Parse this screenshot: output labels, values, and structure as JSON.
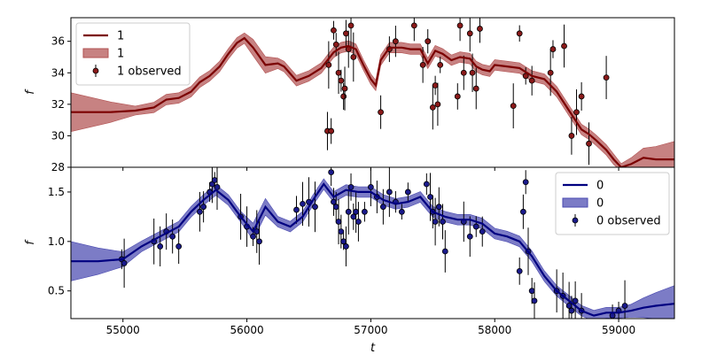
{
  "chart_data": [
    {
      "type": "line",
      "panel": "top",
      "xlabel": "",
      "ylabel": "f",
      "xlim": [
        54580,
        59450
      ],
      "ylim": [
        28,
        37.5
      ],
      "yticks": [
        28,
        30,
        32,
        34,
        36
      ],
      "xticks": [
        55000,
        56000,
        57000,
        58000,
        59000
      ],
      "grid": false,
      "legend_position": "top-left",
      "legend": [
        {
          "label": "1",
          "kind": "line"
        },
        {
          "label": "1",
          "kind": "band"
        },
        {
          "label": "1 observed",
          "kind": "errorbar"
        }
      ],
      "colors": {
        "line": "#7b0000",
        "band": "#b25252",
        "marker": "#8b1a1a"
      },
      "series": [
        {
          "kind": "model_mean",
          "x": [
            54580,
            54900,
            55100,
            55250,
            55350,
            55450,
            55550,
            55620,
            55700,
            55780,
            55850,
            55920,
            55980,
            56050,
            56150,
            56250,
            56300,
            56400,
            56500,
            56600,
            56660,
            56700,
            56760,
            56820,
            56880,
            56940,
            57000,
            57040,
            57080,
            57150,
            57250,
            57320,
            57400,
            57460,
            57520,
            57580,
            57650,
            57720,
            57800,
            57850,
            57900,
            57960,
            58000,
            58100,
            58200,
            58300,
            58400,
            58500,
            58600,
            58700,
            58760,
            58820,
            58900,
            58960,
            59020,
            59100,
            59200,
            59300,
            59450
          ],
          "y": [
            31.5,
            31.5,
            31.6,
            31.8,
            32.3,
            32.4,
            32.8,
            33.4,
            33.8,
            34.4,
            35.2,
            35.9,
            36.2,
            35.6,
            34.5,
            34.6,
            34.4,
            33.5,
            33.8,
            34.3,
            34.9,
            35.3,
            35.6,
            35.7,
            35.5,
            34.5,
            33.6,
            33.2,
            34.8,
            35.6,
            35.6,
            35.5,
            35.5,
            34.6,
            35.4,
            35.2,
            34.8,
            35.0,
            34.9,
            34.4,
            34.2,
            34.1,
            34.5,
            34.4,
            34.3,
            33.8,
            33.6,
            32.8,
            31.6,
            30.4,
            30.1,
            29.7,
            29.1,
            28.5,
            28.0,
            28.2,
            28.6,
            28.5,
            28.5
          ]
        },
        {
          "kind": "observed",
          "x": [
            56650,
            56660,
            56680,
            56700,
            56720,
            56740,
            56760,
            56780,
            56790,
            56800,
            56820,
            56840,
            56860,
            57080,
            57150,
            57200,
            57350,
            57420,
            57460,
            57500,
            57520,
            57540,
            57560,
            57700,
            57720,
            57750,
            57800,
            57820,
            57850,
            57880,
            58150,
            58200,
            58250,
            58300,
            58450,
            58470,
            58560,
            58620,
            58660,
            58700,
            58760,
            58900
          ],
          "y": [
            30.3,
            34.5,
            30.3,
            36.7,
            35.8,
            34.0,
            33.5,
            32.5,
            33.0,
            36.5,
            35.5,
            37.0,
            35.0,
            31.5,
            35.5,
            36.0,
            37.0,
            34.5,
            36.0,
            31.8,
            33.2,
            32.0,
            34.5,
            32.5,
            37.0,
            34.0,
            36.5,
            34.0,
            33.0,
            36.8,
            31.9,
            36.5,
            33.8,
            33.5,
            34.0,
            35.5,
            35.7,
            30.0,
            31.5,
            32.5,
            29.5,
            33.7
          ]
        }
      ]
    },
    {
      "type": "line",
      "panel": "bottom",
      "xlabel": "t",
      "ylabel": "f",
      "xlim": [
        54580,
        59450
      ],
      "ylim": [
        0.22,
        1.75
      ],
      "yticks": [
        0.5,
        1.0,
        1.5
      ],
      "xticks": [
        55000,
        56000,
        57000,
        58000,
        59000
      ],
      "grid": false,
      "legend_position": "top-right",
      "legend": [
        {
          "label": "0",
          "kind": "line"
        },
        {
          "label": "0",
          "kind": "band"
        },
        {
          "label": "0 observed",
          "kind": "errorbar"
        }
      ],
      "colors": {
        "line": "#000080",
        "band": "#4a4ab0",
        "marker": "#1a1a8c"
      },
      "series": [
        {
          "kind": "model_mean",
          "x": [
            54580,
            54800,
            55000,
            55150,
            55300,
            55450,
            55550,
            55650,
            55750,
            55850,
            55950,
            56050,
            56150,
            56250,
            56350,
            56450,
            56550,
            56620,
            56700,
            56800,
            56900,
            57000,
            57100,
            57200,
            57300,
            57400,
            57500,
            57600,
            57700,
            57800,
            57900,
            58000,
            58100,
            58200,
            58300,
            58400,
            58500,
            58600,
            58700,
            58800,
            58900,
            59000,
            59100,
            59200,
            59300,
            59450
          ],
          "y": [
            0.8,
            0.8,
            0.82,
            0.95,
            1.05,
            1.15,
            1.3,
            1.42,
            1.52,
            1.42,
            1.25,
            1.1,
            1.35,
            1.2,
            1.15,
            1.25,
            1.45,
            1.58,
            1.45,
            1.52,
            1.5,
            1.5,
            1.42,
            1.38,
            1.4,
            1.45,
            1.3,
            1.25,
            1.22,
            1.22,
            1.18,
            1.08,
            1.05,
            1.0,
            0.85,
            0.65,
            0.5,
            0.4,
            0.3,
            0.25,
            0.28,
            0.28,
            0.3,
            0.33,
            0.35,
            0.37
          ]
        },
        {
          "kind": "observed",
          "x": [
            54990,
            55010,
            55250,
            55300,
            55350,
            55400,
            55450,
            55620,
            55650,
            55700,
            55720,
            55740,
            55760,
            55950,
            56000,
            56050,
            56080,
            56100,
            56400,
            56450,
            56500,
            56550,
            56680,
            56700,
            56720,
            56740,
            56760,
            56780,
            56800,
            56820,
            56840,
            56860,
            56880,
            56900,
            56950,
            57000,
            57050,
            57100,
            57150,
            57200,
            57250,
            57300,
            57450,
            57480,
            57500,
            57520,
            57550,
            57580,
            57600,
            57750,
            57800,
            57850,
            57900,
            58200,
            58230,
            58250,
            58270,
            58300,
            58320,
            58500,
            58550,
            58600,
            58620,
            58650,
            58700,
            58950,
            59000,
            59050
          ],
          "y": [
            0.82,
            0.78,
            1.0,
            0.95,
            1.1,
            1.05,
            0.95,
            1.3,
            1.35,
            1.5,
            1.58,
            1.62,
            1.55,
            1.25,
            1.15,
            1.05,
            1.1,
            1.0,
            1.32,
            1.38,
            1.4,
            1.35,
            1.7,
            1.4,
            1.35,
            1.2,
            1.1,
            1.0,
            0.95,
            1.3,
            1.55,
            1.25,
            1.3,
            1.2,
            1.3,
            1.55,
            1.45,
            1.35,
            1.5,
            1.4,
            1.3,
            1.5,
            1.58,
            1.45,
            1.3,
            1.2,
            1.35,
            1.2,
            0.9,
            1.2,
            1.05,
            1.15,
            1.1,
            0.7,
            1.3,
            1.6,
            0.9,
            0.5,
            0.4,
            0.5,
            0.45,
            0.35,
            0.3,
            0.4,
            0.3,
            0.25,
            0.3,
            0.35
          ]
        }
      ]
    }
  ]
}
